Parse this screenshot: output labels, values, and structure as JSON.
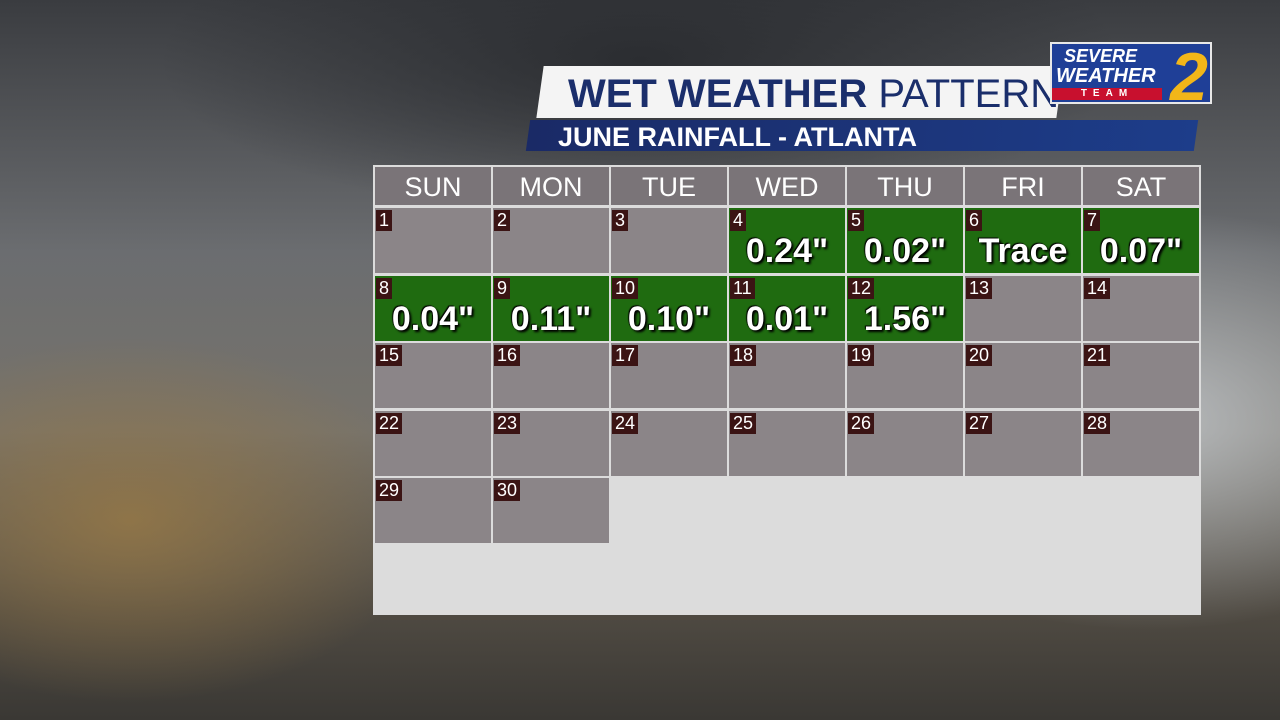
{
  "header": {
    "title_bold": "WET WEATHER",
    "title_light": "PATTERN",
    "subtitle": "JUNE RAINFALL - ATLANTA"
  },
  "logo": {
    "line1": "SEVERE",
    "line2": "WEATHER",
    "line3": "TEAM",
    "number": "2"
  },
  "calendar": {
    "weekdays": [
      "SUN",
      "MON",
      "TUE",
      "WED",
      "THU",
      "FRI",
      "SAT"
    ],
    "days": [
      {
        "day": "1"
      },
      {
        "day": "2"
      },
      {
        "day": "3"
      },
      {
        "day": "4",
        "rain": "0.24\""
      },
      {
        "day": "5",
        "rain": "0.02\""
      },
      {
        "day": "6",
        "rain": "Trace"
      },
      {
        "day": "7",
        "rain": "0.07\""
      },
      {
        "day": "8",
        "rain": "0.04\""
      },
      {
        "day": "9",
        "rain": "0.11\""
      },
      {
        "day": "10",
        "rain": "0.10\""
      },
      {
        "day": "11",
        "rain": "0.01\""
      },
      {
        "day": "12",
        "rain": "1.56\""
      },
      {
        "day": "13"
      },
      {
        "day": "14"
      },
      {
        "day": "15"
      },
      {
        "day": "16"
      },
      {
        "day": "17"
      },
      {
        "day": "18"
      },
      {
        "day": "19"
      },
      {
        "day": "20"
      },
      {
        "day": "21"
      },
      {
        "day": "22"
      },
      {
        "day": "23"
      },
      {
        "day": "24"
      },
      {
        "day": "25"
      },
      {
        "day": "26"
      },
      {
        "day": "27"
      },
      {
        "day": "28"
      },
      {
        "day": "29"
      },
      {
        "day": "30"
      }
    ]
  }
}
